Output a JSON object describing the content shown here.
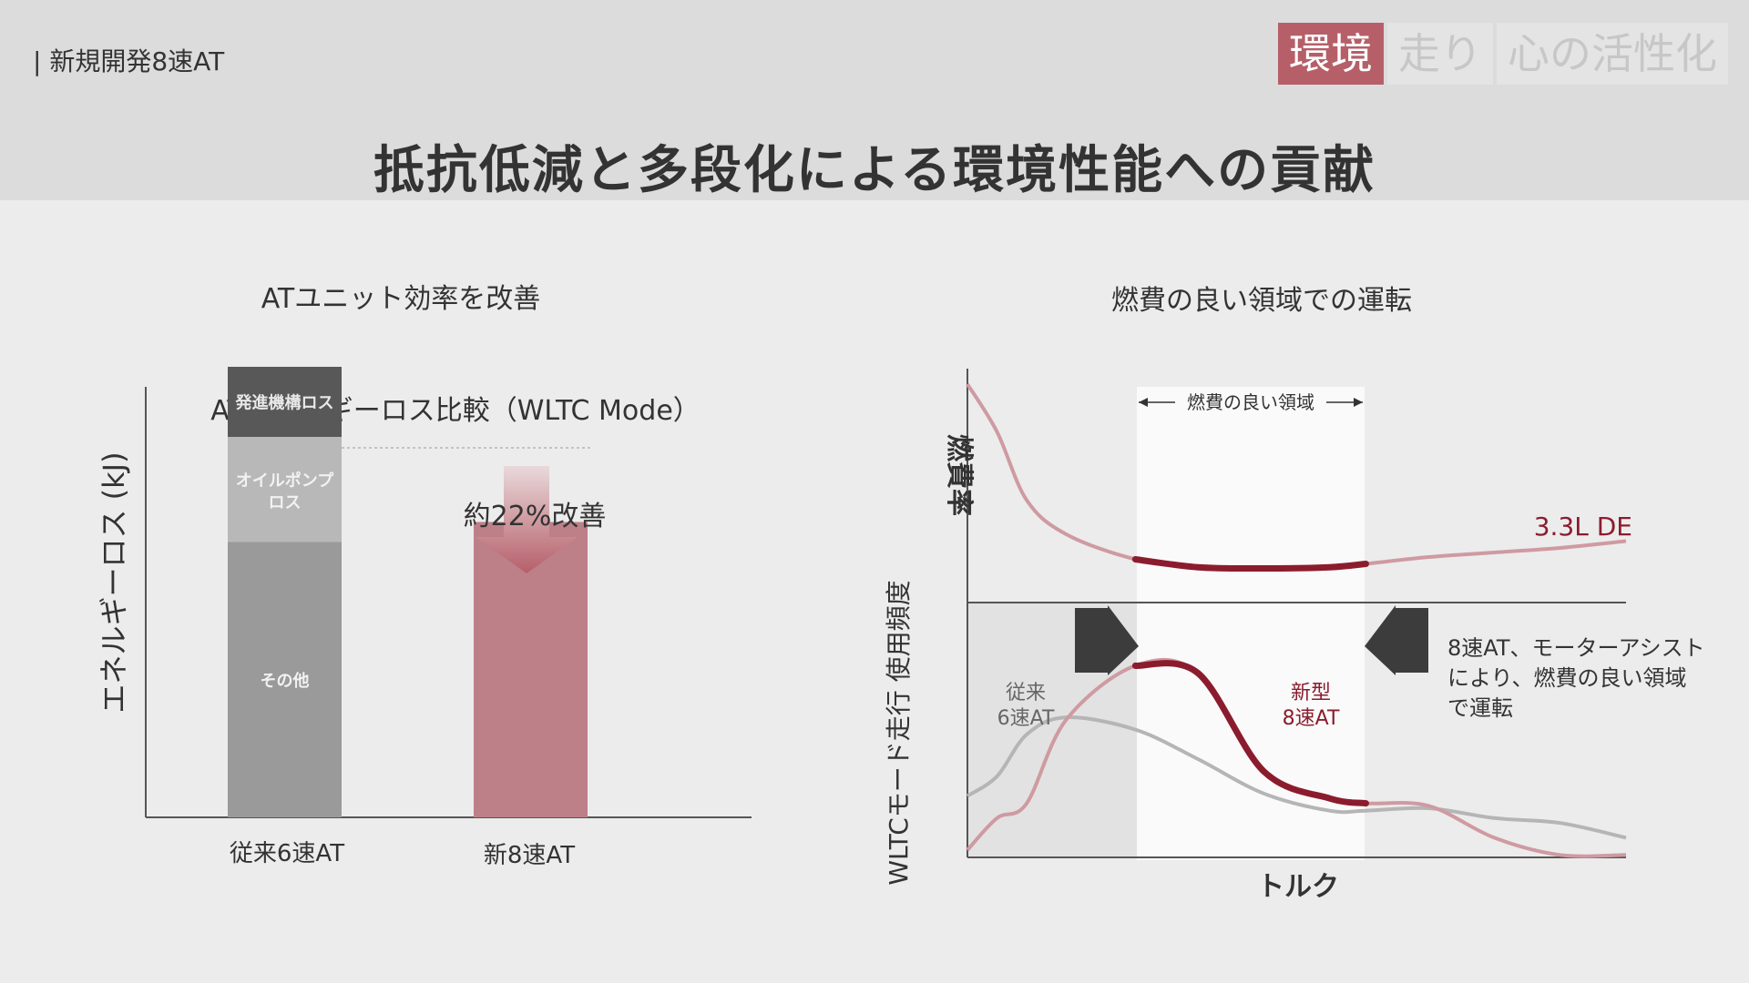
{
  "header": {
    "section_label": "| 新規開発8速AT",
    "tabs": [
      {
        "label": "環境",
        "active": true
      },
      {
        "label": "走り",
        "active": false
      },
      {
        "label": "心の活性化",
        "active": false
      }
    ],
    "title": "抵抗低減と多段化による環境性能への貢献"
  },
  "colors": {
    "accent": "#b65f69",
    "bar_new": "#bd8088",
    "dark_red": "#8b1c2e",
    "stack_top": "#585858",
    "stack_mid": "#b8b8b8",
    "stack_bottom": "#9a9a9a",
    "conventional_line": "#b5b5b5"
  },
  "left_panel": {
    "heading": "ATユニット効率を改善"
  },
  "right_panel": {
    "heading": "燃費の良い領域での運転"
  },
  "chart_data": [
    {
      "type": "bar",
      "title": "ATエネルギーロス比較（WLTC Mode）",
      "ylabel": "エネルギーロス (kJ)",
      "xlabel": "",
      "ylim": [
        0,
        1.0
      ],
      "categories": [
        "従来6速AT",
        "新8速AT"
      ],
      "series": [
        {
          "name": "その他",
          "values": [
            0.55,
            0.59
          ]
        },
        {
          "name": "オイルポンプロス",
          "values": [
            0.21,
            0
          ]
        },
        {
          "name": "発進機構ロス",
          "values": [
            0.14,
            0
          ]
        }
      ],
      "annotation": "約22%改善"
    },
    {
      "type": "line",
      "title": "",
      "xlabel": "トルク",
      "y_upper_label": "燃費率",
      "y_lower_label": "WLTCモード走行\n使用頻度",
      "band_label": "燃費の良い領域",
      "band_x": [
        0.255,
        0.605
      ],
      "x": [
        0.0,
        0.045,
        0.09,
        0.15,
        0.255,
        0.35,
        0.45,
        0.55,
        0.605,
        0.7,
        0.8,
        0.9,
        1.0
      ],
      "series": [
        {
          "name": "3.3L DE",
          "panel": "upper",
          "values": [
            0.96,
            0.75,
            0.45,
            0.3,
            0.19,
            0.155,
            0.15,
            0.155,
            0.17,
            0.2,
            0.22,
            0.24,
            0.27
          ]
        },
        {
          "name": "従来 6速AT",
          "panel": "lower",
          "values": [
            0.25,
            0.33,
            0.5,
            0.57,
            0.52,
            0.4,
            0.26,
            0.19,
            0.19,
            0.2,
            0.16,
            0.14,
            0.08
          ]
        },
        {
          "name": "新型 8速AT",
          "panel": "lower",
          "values": [
            0.03,
            0.16,
            0.22,
            0.56,
            0.78,
            0.75,
            0.35,
            0.24,
            0.22,
            0.21,
            0.08,
            0.01,
            0.01
          ]
        }
      ],
      "labels": {
        "engine": "3.3L DE",
        "conventional_line1": "従来",
        "conventional_line2": "6速AT",
        "new_line1": "新型",
        "new_line2": "8速AT",
        "note_line1": "8速AT、モーターアシスト",
        "note_line2": "により、燃費の良い領域",
        "note_line3": "で運転"
      }
    }
  ]
}
